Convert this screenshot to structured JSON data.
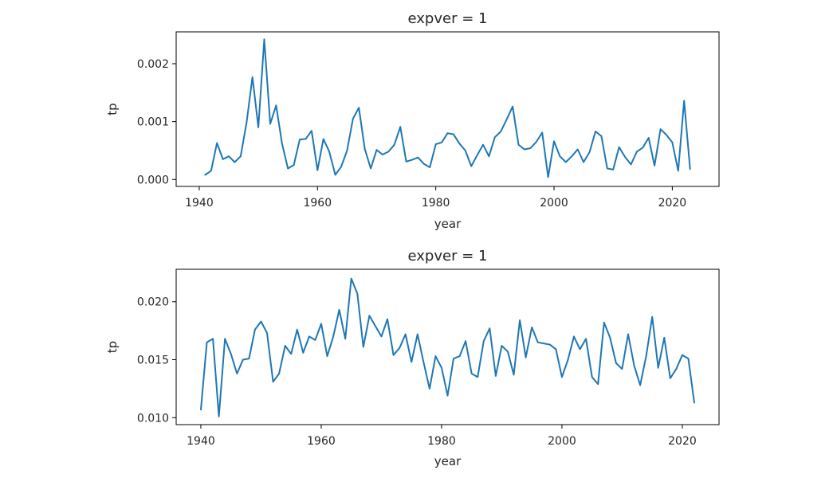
{
  "chart_data": [
    {
      "type": "line",
      "title": "expver = 1",
      "xlabel": "year",
      "ylabel": "tp",
      "xlim": [
        1936.1,
        2027.9
      ],
      "ylim": [
        -0.00012,
        0.00255
      ],
      "xticks": [
        1940,
        1960,
        1980,
        2000,
        2020
      ],
      "xtick_labels": [
        "1940",
        "1960",
        "1980",
        "2000",
        "2020"
      ],
      "yticks": [
        0.0,
        0.001,
        0.002
      ],
      "ytick_labels": [
        "0.000",
        "0.001",
        "0.002"
      ],
      "color": "#1f77b4",
      "x": [
        1941,
        1942,
        1943,
        1944,
        1945,
        1946,
        1947,
        1948,
        1949,
        1950,
        1951,
        1952,
        1953,
        1954,
        1955,
        1956,
        1957,
        1958,
        1959,
        1960,
        1961,
        1962,
        1963,
        1964,
        1965,
        1966,
        1967,
        1968,
        1969,
        1970,
        1971,
        1972,
        1973,
        1974,
        1975,
        1976,
        1977,
        1978,
        1979,
        1980,
        1981,
        1982,
        1983,
        1984,
        1985,
        1986,
        1987,
        1988,
        1989,
        1990,
        1991,
        1992,
        1993,
        1994,
        1995,
        1996,
        1997,
        1998,
        1999,
        2000,
        2001,
        2002,
        2003,
        2004,
        2005,
        2006,
        2007,
        2008,
        2009,
        2010,
        2011,
        2012,
        2013,
        2014,
        2015,
        2016,
        2017,
        2018,
        2019,
        2020,
        2021,
        2022,
        2023
      ],
      "y": [
        8e-05,
        0.00015,
        0.00063,
        0.00035,
        0.0004,
        0.0003,
        0.0004,
        0.00098,
        0.00177,
        0.0009,
        0.00242,
        0.00096,
        0.00128,
        0.00062,
        0.00019,
        0.00025,
        0.00069,
        0.0007,
        0.00084,
        0.00016,
        0.0007,
        0.00048,
        8e-05,
        0.00022,
        0.0005,
        0.00105,
        0.00124,
        0.00053,
        0.00019,
        0.00051,
        0.00043,
        0.00048,
        0.0006,
        0.00091,
        0.00031,
        0.00034,
        0.00038,
        0.00027,
        0.00021,
        0.00061,
        0.00064,
        0.0008,
        0.00078,
        0.00062,
        0.0005,
        0.00023,
        0.00042,
        0.0006,
        0.0004,
        0.00073,
        0.00083,
        0.00104,
        0.00126,
        0.0006,
        0.00052,
        0.00054,
        0.00065,
        0.00081,
        4e-05,
        0.00066,
        0.0004,
        0.0003,
        0.0004,
        0.00052,
        0.0003,
        0.00047,
        0.00083,
        0.00075,
        0.00019,
        0.00017,
        0.00056,
        0.00039,
        0.00026,
        0.00048,
        0.00055,
        0.00072,
        0.00024,
        0.00087,
        0.00077,
        0.00064,
        0.00015,
        0.00136,
        0.00018
      ]
    },
    {
      "type": "line",
      "title": "expver = 1",
      "xlabel": "year",
      "ylabel": "tp",
      "xlim": [
        1935.9,
        2026.1
      ],
      "ylim": [
        0.0094,
        0.0228
      ],
      "xticks": [
        1940,
        1960,
        1980,
        2000,
        2020
      ],
      "xtick_labels": [
        "1940",
        "1960",
        "1980",
        "2000",
        "2020"
      ],
      "yticks": [
        0.01,
        0.015,
        0.02
      ],
      "ytick_labels": [
        "0.010",
        "0.015",
        "0.020"
      ],
      "color": "#1f77b4",
      "x": [
        1940,
        1941,
        1942,
        1943,
        1944,
        1945,
        1946,
        1947,
        1948,
        1949,
        1950,
        1951,
        1952,
        1953,
        1954,
        1955,
        1956,
        1957,
        1958,
        1959,
        1960,
        1961,
        1962,
        1963,
        1964,
        1965,
        1966,
        1967,
        1968,
        1969,
        1970,
        1971,
        1972,
        1973,
        1974,
        1975,
        1976,
        1977,
        1978,
        1979,
        1980,
        1981,
        1982,
        1983,
        1984,
        1985,
        1986,
        1987,
        1988,
        1989,
        1990,
        1991,
        1992,
        1993,
        1994,
        1995,
        1996,
        1997,
        1998,
        1999,
        2000,
        2001,
        2002,
        2003,
        2004,
        2005,
        2006,
        2007,
        2008,
        2009,
        2010,
        2011,
        2012,
        2013,
        2014,
        2015,
        2016,
        2017,
        2018,
        2019,
        2020,
        2021,
        2022
      ],
      "y": [
        0.0107,
        0.0165,
        0.0168,
        0.0101,
        0.0168,
        0.0155,
        0.0138,
        0.015,
        0.0151,
        0.0176,
        0.0183,
        0.0173,
        0.0131,
        0.0138,
        0.0162,
        0.0155,
        0.0176,
        0.0156,
        0.017,
        0.0167,
        0.0181,
        0.0153,
        0.017,
        0.0193,
        0.0168,
        0.022,
        0.0207,
        0.0161,
        0.0188,
        0.0179,
        0.017,
        0.0185,
        0.0154,
        0.016,
        0.0172,
        0.0148,
        0.0172,
        0.0148,
        0.0125,
        0.0153,
        0.0143,
        0.0119,
        0.0151,
        0.0153,
        0.0166,
        0.0138,
        0.0135,
        0.0166,
        0.0177,
        0.0136,
        0.0162,
        0.0157,
        0.0137,
        0.0184,
        0.0152,
        0.0178,
        0.0165,
        0.0164,
        0.0163,
        0.0159,
        0.0135,
        0.015,
        0.017,
        0.0159,
        0.0168,
        0.0135,
        0.0129,
        0.0182,
        0.0169,
        0.0147,
        0.0142,
        0.0172,
        0.0145,
        0.0128,
        0.0153,
        0.0187,
        0.0143,
        0.0169,
        0.0134,
        0.0142,
        0.0154,
        0.0151,
        0.0113
      ]
    }
  ]
}
